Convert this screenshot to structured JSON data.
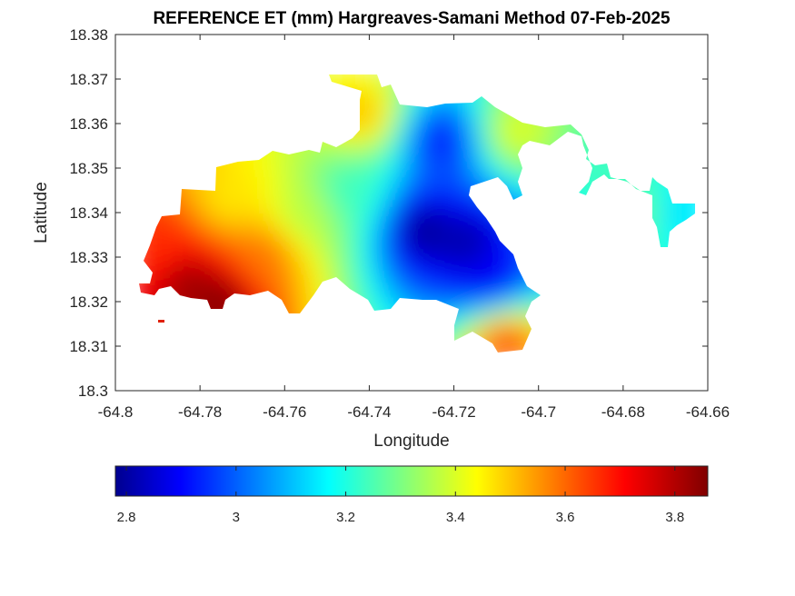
{
  "chart_data": {
    "type": "heatmap",
    "title": "REFERENCE ET (mm) Hargreaves-Samani Method  07-Feb-2025",
    "xlabel": "Longitude",
    "ylabel": "Latitude",
    "xlim": [
      -64.8,
      -64.66
    ],
    "ylim": [
      18.3,
      18.38
    ],
    "x_ticks": [
      -64.8,
      -64.78,
      -64.76,
      -64.74,
      -64.72,
      -64.7,
      -64.68,
      -64.66
    ],
    "y_ticks": [
      18.3,
      18.31,
      18.32,
      18.33,
      18.34,
      18.35,
      18.36,
      18.37,
      18.38
    ],
    "x_tick_labels": [
      "-64.8",
      "-64.78",
      "-64.76",
      "-64.74",
      "-64.72",
      "-64.7",
      "-64.68",
      "-64.66"
    ],
    "y_tick_labels": [
      "18.3",
      "18.31",
      "18.32",
      "18.33",
      "18.34",
      "18.35",
      "18.36",
      "18.37",
      "18.38"
    ],
    "colormap": "jet",
    "colorbar": {
      "orientation": "horizontal",
      "placement": "below",
      "range": [
        2.78,
        3.86
      ],
      "ticks": [
        2.8,
        3,
        3.2,
        3.4,
        3.6,
        3.8
      ],
      "tick_labels": [
        "2.8",
        "3",
        "3.2",
        "3.4",
        "3.6",
        "3.8"
      ]
    },
    "grid": false,
    "field_centers": [
      {
        "lon": -64.727,
        "lat": 18.336,
        "value": 2.8
      },
      {
        "lon": -64.717,
        "lat": 18.333,
        "value": 2.82
      },
      {
        "lon": -64.723,
        "lat": 18.356,
        "value": 2.95
      },
      {
        "lon": -64.712,
        "lat": 18.326,
        "value": 2.9
      },
      {
        "lon": -64.745,
        "lat": 18.345,
        "value": 3.25
      },
      {
        "lon": -64.755,
        "lat": 18.34,
        "value": 3.38
      },
      {
        "lon": -64.783,
        "lat": 18.324,
        "value": 3.83
      },
      {
        "lon": -64.775,
        "lat": 18.32,
        "value": 3.86
      },
      {
        "lon": -64.79,
        "lat": 18.332,
        "value": 3.68
      },
      {
        "lon": -64.765,
        "lat": 18.33,
        "value": 3.6
      },
      {
        "lon": -64.773,
        "lat": 18.343,
        "value": 3.48
      },
      {
        "lon": -64.742,
        "lat": 18.362,
        "value": 3.52
      },
      {
        "lon": -64.708,
        "lat": 18.31,
        "value": 3.65
      },
      {
        "lon": -64.705,
        "lat": 18.358,
        "value": 3.42
      },
      {
        "lon": -64.675,
        "lat": 18.34,
        "value": 3.3
      },
      {
        "lon": -64.668,
        "lat": 18.34,
        "value": 3.15
      }
    ]
  }
}
